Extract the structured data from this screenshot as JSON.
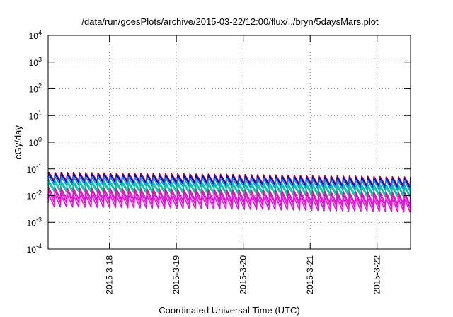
{
  "chart_data": {
    "type": "line",
    "title": "/data/run/goesPlots/archive/2015-03-22/12:00/flux/../bryn/5daysMars.plot",
    "xlabel": "Coordinated Universal Time (UTC)",
    "ylabel": "cGy/day",
    "y_scale": "log",
    "ylim": [
      0.0001,
      10000
    ],
    "y_ticks": [
      {
        "value": 0.0001,
        "base": "10",
        "exp": "-4"
      },
      {
        "value": 0.001,
        "base": "10",
        "exp": "-3"
      },
      {
        "value": 0.01,
        "base": "10",
        "exp": "-2"
      },
      {
        "value": 0.1,
        "base": "10",
        "exp": "-1"
      },
      {
        "value": 1,
        "base": "10",
        "exp": "0"
      },
      {
        "value": 10,
        "base": "10",
        "exp": "1"
      },
      {
        "value": 100,
        "base": "10",
        "exp": "2"
      },
      {
        "value": 1000,
        "base": "10",
        "exp": "3"
      },
      {
        "value": 10000,
        "base": "10",
        "exp": "4"
      }
    ],
    "xlim": [
      "2015-03-17T02:00",
      "2015-03-22T12:00"
    ],
    "x_ticks": [
      {
        "value": "2015-03-18T00:00",
        "label": "2015-3-18"
      },
      {
        "value": "2015-03-19T00:00",
        "label": "2015-3-19"
      },
      {
        "value": "2015-03-20T00:00",
        "label": "2015-3-20"
      },
      {
        "value": "2015-03-21T00:00",
        "label": "2015-3-21"
      },
      {
        "value": "2015-03-22T00:00",
        "label": "2015-3-22"
      }
    ],
    "grid": true,
    "sawtooth_period_hours": 2.2,
    "series": [
      {
        "color": "#cc0000",
        "peak_start": 0.075,
        "trough_start": 0.036,
        "peak_end": 0.05,
        "trough_end": 0.022
      },
      {
        "color": "#0000cc",
        "peak_start": 0.065,
        "trough_start": 0.031,
        "peak_end": 0.044,
        "trough_end": 0.019
      },
      {
        "color": "#1188ff",
        "peak_start": 0.052,
        "trough_start": 0.025,
        "peak_end": 0.036,
        "trough_end": 0.015
      },
      {
        "color": "#00bfbf",
        "peak_start": 0.036,
        "trough_start": 0.017,
        "peak_end": 0.025,
        "trough_end": 0.01
      },
      {
        "color": "#00cc99",
        "peak_start": 0.03,
        "trough_start": 0.014,
        "peak_end": 0.02,
        "trough_end": 0.0085
      },
      {
        "color": "#993399",
        "peak_start": 0.02,
        "trough_start": 0.0075,
        "peak_end": 0.013,
        "trough_end": 0.0045
      },
      {
        "color": "#ff00cc",
        "peak_start": 0.016,
        "trough_start": 0.0055,
        "peak_end": 0.0105,
        "trough_end": 0.0034
      },
      {
        "color": "#ff00ff",
        "peak_start": 0.011,
        "trough_start": 0.0038,
        "peak_end": 0.0075,
        "trough_end": 0.0024
      }
    ]
  }
}
